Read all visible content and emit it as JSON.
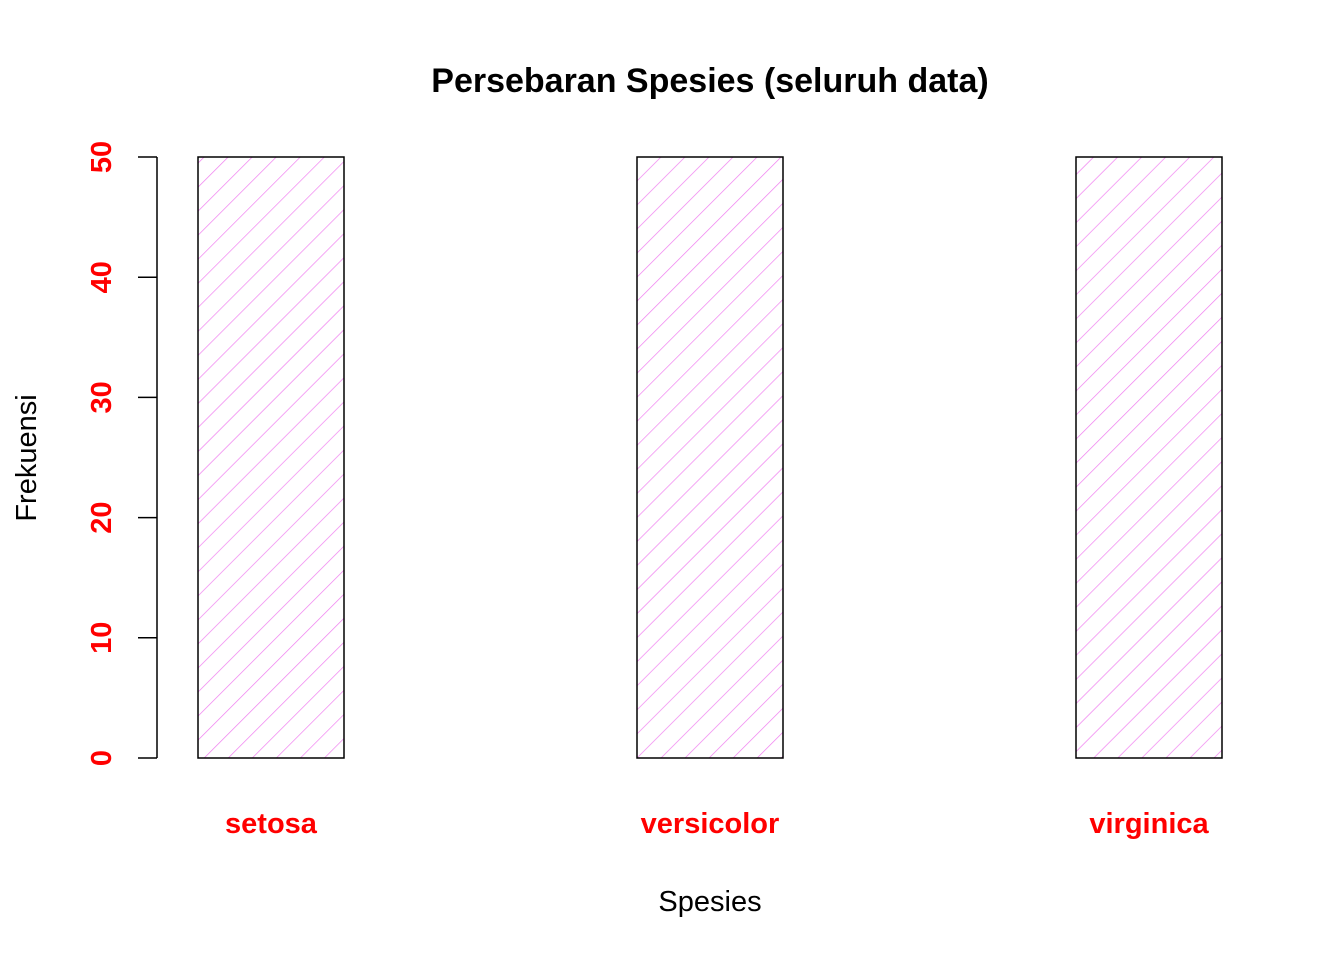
{
  "chart_data": {
    "type": "bar",
    "title": "Persebaran Spesies (seluruh data)",
    "xlabel": "Spesies",
    "ylabel": "Frekuensi",
    "categories": [
      "setosa",
      "versicolor",
      "virginica"
    ],
    "values": [
      50,
      50,
      50
    ],
    "ylim": [
      0,
      50
    ],
    "yticks": [
      0,
      10,
      20,
      30,
      40,
      50
    ],
    "grid": false,
    "bar_fill": "diagonal hatch",
    "colors": {
      "hatch": "#f07ff0",
      "bar_border": "#000000",
      "tick_labels": "#ff0000",
      "category_labels": "#ff0000",
      "axis": "#000000",
      "text": "#000000"
    }
  }
}
